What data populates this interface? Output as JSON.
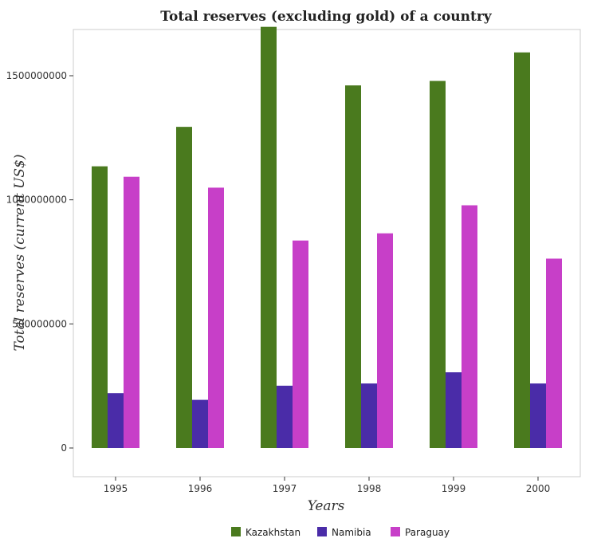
{
  "chart_data": {
    "type": "bar",
    "title": "Total reserves (excluding gold) of a country",
    "xlabel": "Years",
    "ylabel": "Total reserves (current US$)",
    "categories": [
      "1995",
      "1996",
      "1997",
      "1998",
      "1999",
      "2000"
    ],
    "series": [
      {
        "name": "Kazakhstan",
        "color": "#4a7a1e",
        "values": [
          1135000000,
          1294000000,
          1697000000,
          1461000000,
          1479000000,
          1594000000
        ]
      },
      {
        "name": "Namibia",
        "color": "#4a2ca8",
        "values": [
          221000000,
          194000000,
          251000000,
          260000000,
          305000000,
          260000000
        ]
      },
      {
        "name": "Paraguay",
        "color": "#c73fc8",
        "values": [
          1093000000,
          1049000000,
          836000000,
          865000000,
          978000000,
          763000000
        ]
      }
    ],
    "yticks": [
      {
        "value": 0,
        "label": "0"
      },
      {
        "value": 500000000,
        "label": "500000000"
      },
      {
        "value": 1000000000,
        "label": "1000000000"
      },
      {
        "value": 1500000000,
        "label": "1500000000"
      }
    ],
    "ylim": [
      0,
      1780000000
    ],
    "grid": false,
    "legend": "bottom"
  }
}
